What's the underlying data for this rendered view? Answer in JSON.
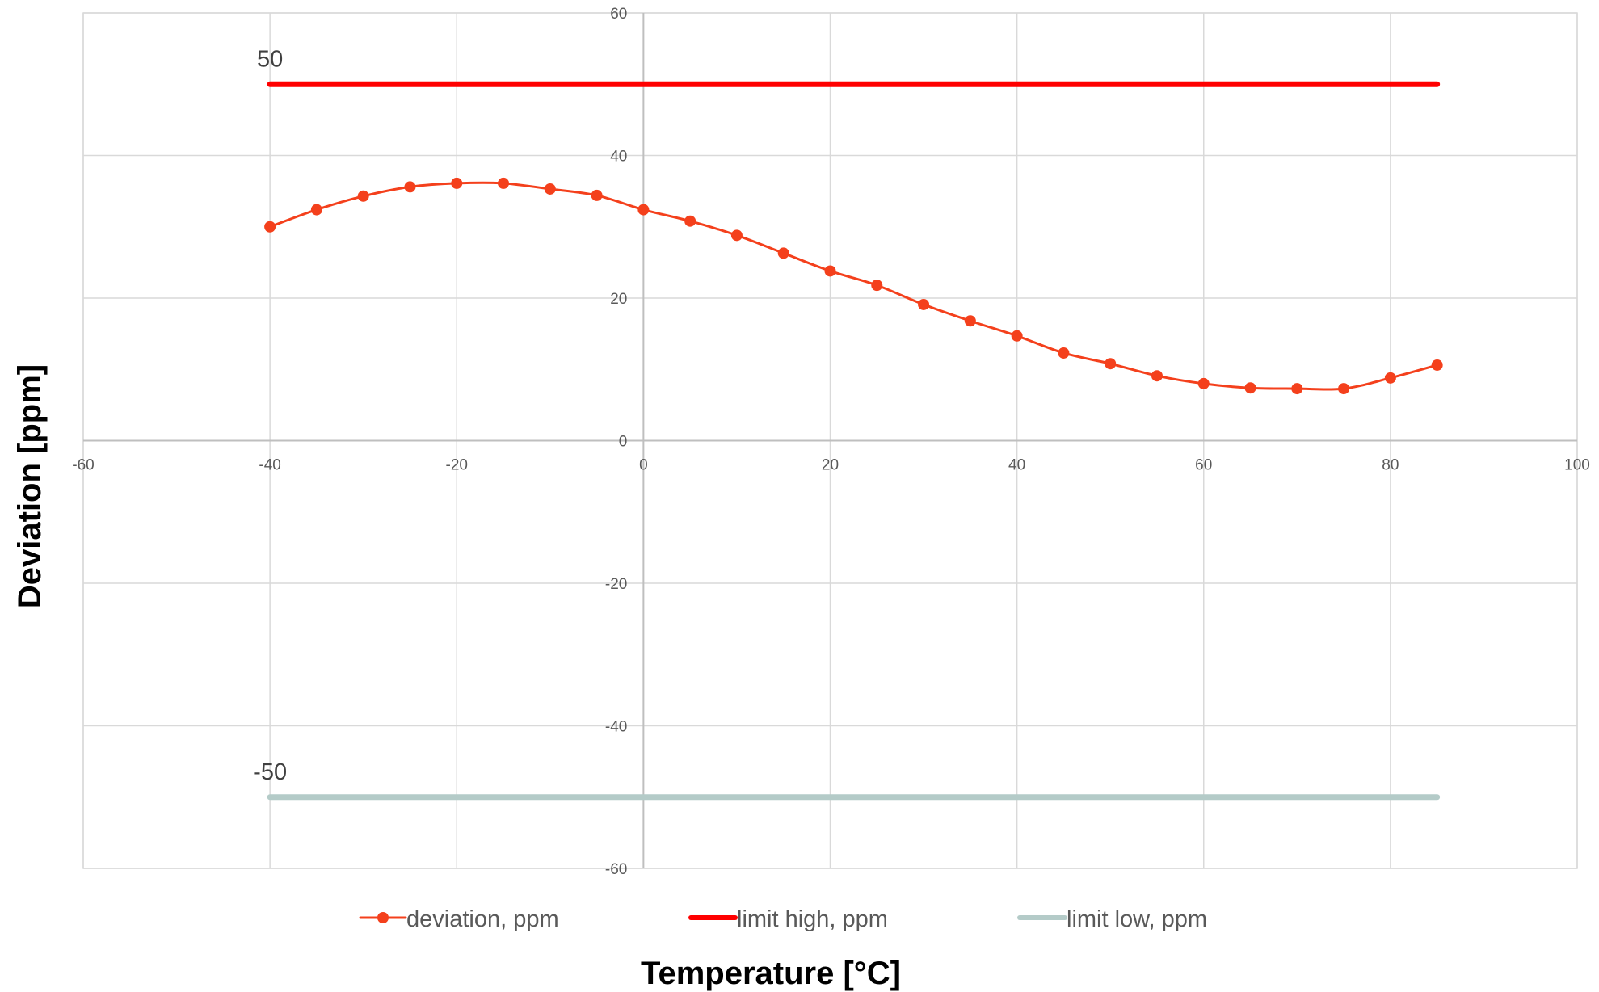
{
  "chart_data": {
    "type": "line",
    "xlabel": "Temperature [°C]",
    "ylabel": "Deviation [ppm]",
    "xlim": [
      -60,
      100
    ],
    "ylim": [
      -60,
      60
    ],
    "x_ticks": [
      -60,
      -40,
      -20,
      0,
      20,
      40,
      60,
      80,
      100
    ],
    "y_ticks": [
      -60,
      -40,
      -20,
      0,
      20,
      40,
      60
    ],
    "grid": true,
    "legend_position": "bottom",
    "annotations": [
      {
        "text": "50",
        "x": -40,
        "y": 50
      },
      {
        "text": "-50",
        "x": -40,
        "y": -50
      }
    ],
    "series": [
      {
        "name": "deviation, ppm",
        "color": "#f4401c",
        "markers": true,
        "smooth": true,
        "x": [
          -40,
          -35,
          -30,
          -25,
          -20,
          -15,
          -10,
          -5,
          0,
          5,
          10,
          15,
          20,
          25,
          30,
          35,
          40,
          45,
          50,
          55,
          60,
          65,
          70,
          75,
          80,
          85
        ],
        "y": [
          30.0,
          32.4,
          34.3,
          35.6,
          36.1,
          36.1,
          35.3,
          34.4,
          32.4,
          30.8,
          28.8,
          26.3,
          23.8,
          21.8,
          19.1,
          16.8,
          14.7,
          12.3,
          10.8,
          9.1,
          8.0,
          7.4,
          7.3,
          7.3,
          8.8,
          10.6
        ]
      },
      {
        "name": "limit high, ppm",
        "color": "#ff0000",
        "markers": false,
        "smooth": false,
        "x": [
          -40,
          85
        ],
        "y": [
          50,
          50
        ]
      },
      {
        "name": "limit low, ppm",
        "color": "#b4cbc8",
        "markers": false,
        "smooth": false,
        "x": [
          -40,
          85
        ],
        "y": [
          -50,
          -50
        ]
      }
    ]
  }
}
